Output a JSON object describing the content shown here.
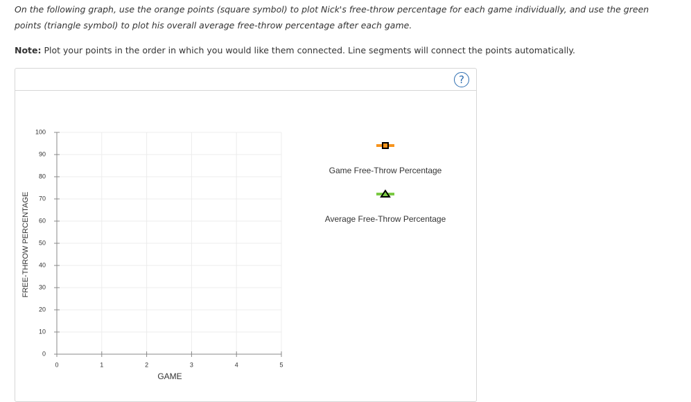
{
  "instructions": [
    "On the following graph, use the orange points (square symbol) to plot Nick's free-throw percentage for each game individually, and use the green",
    "points (triangle symbol) to plot his overall average free-throw percentage after each game."
  ],
  "note": {
    "label": "Note:",
    "text": "Plot your points in the order in which you would like them connected. Line segments will connect the points automatically."
  },
  "help_label": "?",
  "chart_data": {
    "type": "line",
    "xlabel": "GAME",
    "ylabel": "FREE-THROW PERCENTAGE",
    "xlim": [
      0,
      5
    ],
    "xticks": [
      0,
      1,
      2,
      3,
      4,
      5
    ],
    "ylim": [
      0,
      100
    ],
    "yticks": [
      0,
      10,
      20,
      30,
      40,
      50,
      60,
      70,
      80,
      90,
      100
    ],
    "grid": true,
    "series": [
      {
        "name": "Game Free-Throw Percentage",
        "color": "#f7941d",
        "marker": "square"
      },
      {
        "name": "Average Free-Throw Percentage",
        "color": "#7ac943",
        "marker": "triangle"
      }
    ]
  }
}
